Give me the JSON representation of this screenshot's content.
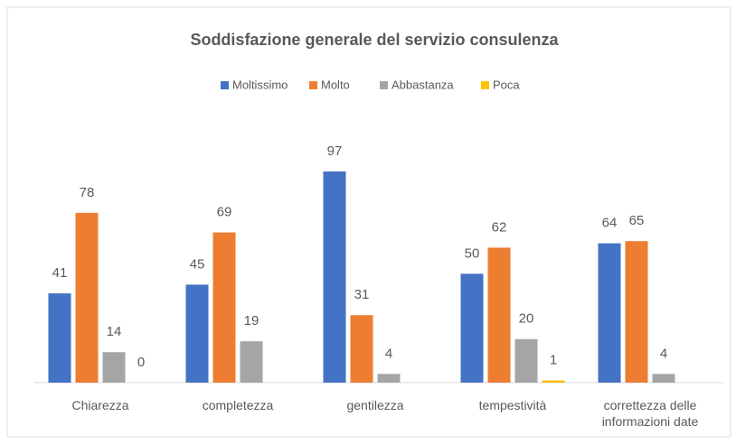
{
  "chart_data": {
    "type": "bar",
    "title": "Soddisfazione generale del servizio consulenza",
    "categories": [
      "Chiarezza",
      "completezza",
      "gentilezza",
      "tempestività",
      "correttezza delle informazioni date"
    ],
    "series": [
      {
        "name": "Moltissimo",
        "color": "#4472c4",
        "values": [
          41,
          45,
          97,
          50,
          64
        ]
      },
      {
        "name": "Molto",
        "color": "#ed7d31",
        "values": [
          78,
          69,
          31,
          62,
          65
        ]
      },
      {
        "name": "Abbastanza",
        "color": "#a5a5a5",
        "values": [
          14,
          19,
          4,
          20,
          4
        ]
      },
      {
        "name": "Poca",
        "color": "#ffc000",
        "values": [
          0,
          null,
          null,
          1,
          null
        ]
      }
    ],
    "legend": "top"
  }
}
